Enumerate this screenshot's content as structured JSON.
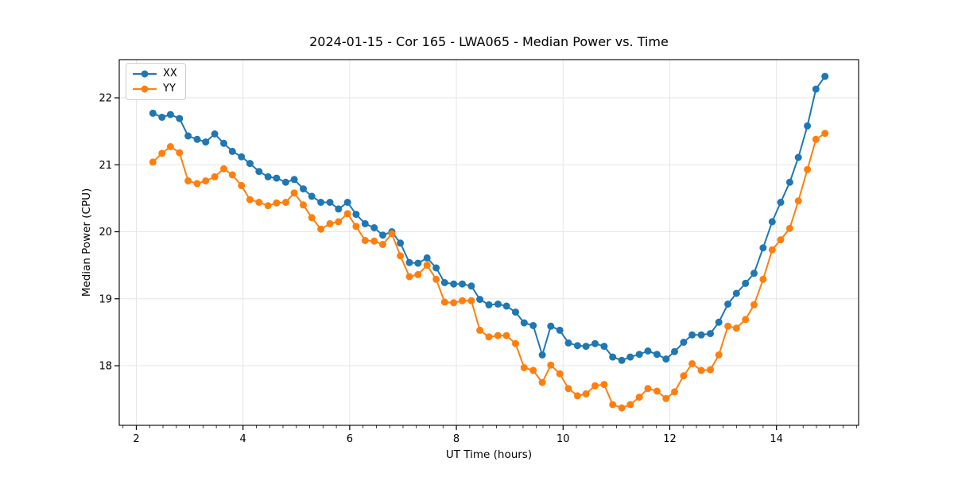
{
  "title": "2024-01-15 - Cor 165 - LWA065 - Median Power vs. Time",
  "chart_data": {
    "type": "line",
    "title": "2024-01-15 - Cor 165 - LWA065 - Median Power vs. Time",
    "xlabel": "UT Time (hours)",
    "ylabel": "Median Power (CPU)",
    "xlim": [
      1.68,
      15.54
    ],
    "ylim": [
      17.11,
      22.57
    ],
    "x_ticks_major": [
      2,
      4,
      6,
      8,
      10,
      12,
      14
    ],
    "x_minor_step": 0.25,
    "y_ticks_major": [
      18,
      19,
      20,
      21,
      22
    ],
    "grid": true,
    "grid_color": "#e6e6e6",
    "spine_color": "#000000",
    "legend_position": "upper-left",
    "x": [
      2.31,
      2.48,
      2.64,
      2.81,
      2.97,
      3.14,
      3.3,
      3.47,
      3.64,
      3.8,
      3.97,
      4.13,
      4.3,
      4.47,
      4.63,
      4.8,
      4.96,
      5.13,
      5.29,
      5.46,
      5.63,
      5.79,
      5.96,
      6.12,
      6.29,
      6.46,
      6.62,
      6.79,
      6.95,
      7.12,
      7.28,
      7.45,
      7.62,
      7.78,
      7.95,
      8.11,
      8.28,
      8.44,
      8.61,
      8.78,
      8.94,
      9.11,
      9.27,
      9.44,
      9.61,
      9.77,
      9.94,
      10.1,
      10.27,
      10.43,
      10.6,
      10.77,
      10.93,
      11.1,
      11.26,
      11.43,
      11.59,
      11.76,
      11.93,
      12.09,
      12.26,
      12.42,
      12.59,
      12.76,
      12.92,
      13.09,
      13.25,
      13.42,
      13.58,
      13.75,
      13.92,
      14.08,
      14.25,
      14.41,
      14.58,
      14.74,
      14.91
    ],
    "series": [
      {
        "name": "XX",
        "color": "#1f77b4",
        "values": [
          21.77,
          21.71,
          21.75,
          21.69,
          21.43,
          21.38,
          21.34,
          21.46,
          21.32,
          21.2,
          21.12,
          21.02,
          20.9,
          20.82,
          20.8,
          20.74,
          20.78,
          20.64,
          20.53,
          20.44,
          20.44,
          20.34,
          20.44,
          20.26,
          20.12,
          20.06,
          19.95,
          20.0,
          19.83,
          19.54,
          19.53,
          19.61,
          19.46,
          19.24,
          19.22,
          19.22,
          19.19,
          18.99,
          18.91,
          18.92,
          18.89,
          18.8,
          18.64,
          18.6,
          18.16,
          18.59,
          18.53,
          18.34,
          18.3,
          18.29,
          18.33,
          18.29,
          18.13,
          18.08,
          18.13,
          18.17,
          18.22,
          18.17,
          18.1,
          18.21,
          18.35,
          18.46,
          18.46,
          18.48,
          18.65,
          18.92,
          19.08,
          19.23,
          19.38,
          19.76,
          20.15,
          20.44,
          20.74,
          21.11,
          21.58,
          22.13,
          22.32
        ]
      },
      {
        "name": "YY",
        "color": "#ff7f0e",
        "values": [
          21.04,
          21.17,
          21.27,
          21.18,
          20.76,
          20.72,
          20.76,
          20.82,
          20.94,
          20.85,
          20.69,
          20.48,
          20.44,
          20.39,
          20.43,
          20.44,
          20.58,
          20.4,
          20.21,
          20.04,
          20.12,
          20.15,
          20.27,
          20.08,
          19.87,
          19.86,
          19.81,
          19.97,
          19.64,
          19.33,
          19.36,
          19.5,
          19.29,
          18.95,
          18.94,
          18.97,
          18.97,
          18.53,
          18.43,
          18.45,
          18.45,
          18.33,
          17.97,
          17.93,
          17.75,
          18.01,
          17.88,
          17.66,
          17.55,
          17.58,
          17.7,
          17.72,
          17.42,
          17.37,
          17.42,
          17.53,
          17.66,
          17.62,
          17.51,
          17.61,
          17.85,
          18.03,
          17.93,
          17.94,
          18.16,
          18.59,
          18.56,
          18.69,
          18.91,
          19.29,
          19.73,
          19.88,
          20.05,
          20.46,
          20.93,
          21.38,
          21.47
        ]
      }
    ]
  }
}
